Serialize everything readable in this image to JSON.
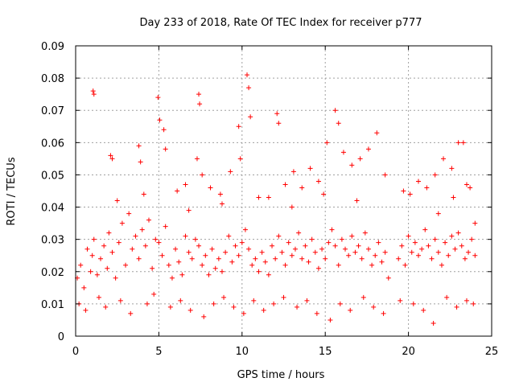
{
  "chart_data": {
    "type": "scatter",
    "title": "Day 233 of 2018, Rate Of TEC Index for receiver p777",
    "xlabel": "GPS time / hours",
    "ylabel": "ROTI / TECUs",
    "xlim": [
      0,
      25
    ],
    "ylim": [
      0,
      0.09
    ],
    "x_ticks": [
      "0",
      "5",
      "10",
      "15",
      "20",
      "25"
    ],
    "y_ticks": [
      "0",
      "0.01",
      "0.02",
      "0.03",
      "0.04",
      "0.05",
      "0.06",
      "0.07",
      "0.08",
      "0.09"
    ],
    "grid": true,
    "marker": "+",
    "color": "#ff0000",
    "series": [
      {
        "x": [
          0.1,
          0.3,
          0.5,
          0.7,
          0.9,
          1.0,
          1.1,
          1.3,
          1.5,
          1.7,
          1.9,
          2.0,
          2.2,
          2.4,
          2.6,
          2.8,
          3.0,
          3.2,
          3.4,
          3.6,
          3.8,
          4.0,
          4.2,
          4.4,
          4.6,
          4.8,
          5.0,
          5.2,
          5.4,
          5.6,
          5.8,
          6.0,
          6.2,
          6.4,
          6.6,
          6.8,
          7.0,
          7.2,
          7.4,
          7.6,
          7.8,
          8.0,
          8.2,
          8.4,
          8.6,
          8.8,
          9.0,
          9.2,
          9.4,
          9.6,
          9.8,
          10.0,
          10.2,
          10.4,
          10.6,
          10.8,
          11.0,
          11.2,
          11.4,
          11.6,
          11.8,
          12.0,
          12.2,
          12.4,
          12.6,
          12.8,
          13.0,
          13.2,
          13.4,
          13.6,
          13.8,
          14.0,
          14.2,
          14.4,
          14.6,
          14.8,
          15.0,
          15.2,
          15.4,
          15.6,
          15.8,
          16.0,
          16.2,
          16.4,
          16.6,
          16.8,
          17.0,
          17.2,
          17.4,
          17.6,
          17.8,
          18.0,
          18.2,
          18.4,
          18.6,
          18.8,
          19.4,
          19.6,
          19.8,
          20.0,
          20.2,
          20.4,
          20.6,
          20.8,
          21.0,
          21.2,
          21.4,
          21.6,
          21.8,
          22.0,
          22.2,
          22.4,
          22.6,
          22.8,
          23.0,
          23.2,
          23.4,
          23.6,
          23.8,
          24.0,
          1.05,
          1.1,
          10.3,
          10.4,
          7.4,
          7.45,
          4.95,
          5.05,
          15.6,
          15.8,
          12.1,
          12.2,
          9.8,
          10.5,
          2.1,
          2.2,
          3.8,
          3.9,
          5.3,
          5.4,
          6.1,
          6.6,
          7.3,
          7.6,
          8.1,
          8.7,
          9.3,
          9.9,
          11.6,
          12.6,
          13.1,
          13.6,
          14.1,
          14.6,
          15.1,
          16.1,
          16.6,
          17.1,
          17.6,
          18.1,
          18.6,
          20.1,
          20.6,
          21.1,
          21.6,
          22.1,
          22.6,
          23.0,
          23.3,
          23.5,
          23.7,
          0.2,
          0.6,
          1.4,
          1.8,
          2.7,
          3.3,
          4.3,
          4.7,
          5.7,
          6.3,
          6.9,
          7.7,
          8.3,
          8.9,
          9.5,
          10.1,
          10.7,
          11.3,
          11.9,
          12.5,
          13.3,
          13.9,
          14.5,
          15.3,
          15.9,
          16.5,
          17.3,
          17.9,
          18.5,
          19.5,
          20.3,
          20.9,
          21.5,
          22.3,
          22.9,
          23.5,
          23.9,
          2.5,
          4.1,
          6.8,
          8.8,
          11.0,
          13.0,
          14.9,
          16.9,
          19.7,
          21.8,
          22.7,
          24.0
        ],
        "y": [
          0.018,
          0.022,
          0.015,
          0.027,
          0.02,
          0.025,
          0.03,
          0.019,
          0.024,
          0.028,
          0.021,
          0.032,
          0.026,
          0.018,
          0.029,
          0.035,
          0.022,
          0.038,
          0.027,
          0.031,
          0.024,
          0.033,
          0.028,
          0.036,
          0.021,
          0.03,
          0.029,
          0.025,
          0.034,
          0.022,
          0.018,
          0.027,
          0.023,
          0.019,
          0.031,
          0.026,
          0.024,
          0.03,
          0.028,
          0.022,
          0.025,
          0.019,
          0.027,
          0.021,
          0.024,
          0.02,
          0.026,
          0.031,
          0.023,
          0.028,
          0.025,
          0.029,
          0.033,
          0.027,
          0.022,
          0.024,
          0.02,
          0.026,
          0.023,
          0.019,
          0.028,
          0.024,
          0.031,
          0.026,
          0.022,
          0.029,
          0.025,
          0.027,
          0.032,
          0.024,
          0.028,
          0.023,
          0.03,
          0.026,
          0.021,
          0.027,
          0.024,
          0.029,
          0.033,
          0.028,
          0.022,
          0.03,
          0.027,
          0.025,
          0.031,
          0.026,
          0.028,
          0.024,
          0.032,
          0.027,
          0.022,
          0.025,
          0.029,
          0.023,
          0.026,
          0.018,
          0.024,
          0.028,
          0.022,
          0.031,
          0.026,
          0.029,
          0.025,
          0.027,
          0.033,
          0.028,
          0.024,
          0.03,
          0.026,
          0.022,
          0.029,
          0.025,
          0.031,
          0.027,
          0.032,
          0.028,
          0.024,
          0.026,
          0.03,
          0.025,
          0.076,
          0.075,
          0.081,
          0.077,
          0.075,
          0.072,
          0.074,
          0.067,
          0.07,
          0.066,
          0.069,
          0.066,
          0.065,
          0.068,
          0.056,
          0.055,
          0.059,
          0.054,
          0.064,
          0.058,
          0.045,
          0.047,
          0.055,
          0.05,
          0.046,
          0.044,
          0.051,
          0.055,
          0.043,
          0.047,
          0.051,
          0.046,
          0.052,
          0.048,
          0.06,
          0.057,
          0.053,
          0.055,
          0.058,
          0.063,
          0.05,
          0.044,
          0.048,
          0.046,
          0.05,
          0.055,
          0.052,
          0.06,
          0.06,
          0.047,
          0.046,
          0.01,
          0.008,
          0.012,
          0.009,
          0.011,
          0.007,
          0.01,
          0.013,
          0.009,
          0.011,
          0.008,
          0.006,
          0.01,
          0.012,
          0.009,
          0.007,
          0.011,
          0.008,
          0.01,
          0.012,
          0.009,
          0.011,
          0.007,
          0.005,
          0.01,
          0.008,
          0.012,
          0.009,
          0.007,
          0.011,
          0.01,
          0.008,
          0.004,
          0.012,
          0.009,
          0.011,
          0.01,
          0.042,
          0.044,
          0.039,
          0.041,
          0.043,
          0.04,
          0.044,
          0.042,
          0.045,
          0.038,
          0.043,
          0.035
        ]
      }
    ]
  }
}
